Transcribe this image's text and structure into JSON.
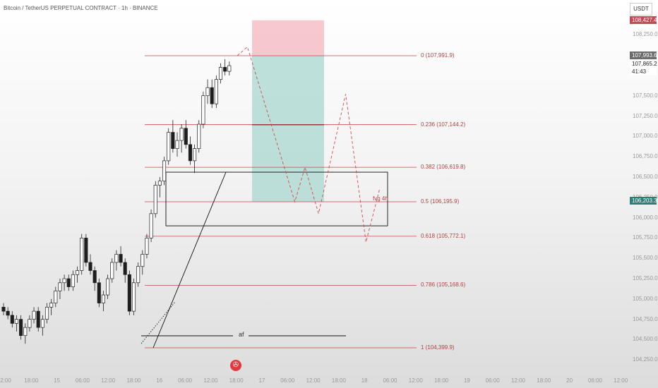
{
  "header": {
    "title": "Bitcoin / TetherUS PERPETUAL CONTRACT · 1h · BINANCE"
  },
  "currency": "USDT",
  "price_axis": {
    "ticks": [
      "108,250.0",
      "107,500.0",
      "107,250.0",
      "107,000.0",
      "106,750.0",
      "106,500.0",
      "106,250.0",
      "106,000.0",
      "105,750.0",
      "105,500.0",
      "105,250.0",
      "105,000.0",
      "104,750.0",
      "104,500.0",
      "104,250.0"
    ],
    "tick_values": [
      108250,
      107500,
      107250,
      107000,
      106750,
      106500,
      106250,
      106000,
      105750,
      105500,
      105250,
      105000,
      104750,
      104500,
      104250
    ],
    "labels": {
      "stop": {
        "text": "108,427.4",
        "value": 108427.4,
        "color": "#c44a55"
      },
      "last": {
        "text": "107,993.6",
        "value": 107993.6,
        "color": "#6b6b6b"
      },
      "current": {
        "text": "107,865.2",
        "value": 107865.2
      },
      "countdown": {
        "text": "41:43"
      },
      "fvg_price": {
        "text": "106,203.3",
        "value": 106203.3,
        "color": "#2f7d74"
      }
    }
  },
  "time_axis": {
    "ticks": [
      "2:00",
      "18:00",
      "15",
      "06:00",
      "12:00",
      "18:00",
      "16",
      "06:00",
      "12:00",
      "18:00",
      "17",
      "06:00",
      "12:00",
      "18:00",
      "18",
      "06:00",
      "12:00",
      "18:00",
      "19",
      "06:00",
      "12:00",
      "18:00",
      "20",
      "06:00",
      "12:00"
    ]
  },
  "chart_data": {
    "type": "candlestick",
    "title": "Bitcoin / TetherUS PERPETUAL CONTRACT · 1h · BINANCE",
    "fib_levels": [
      {
        "ratio": "0",
        "price": 107991.9,
        "label": "0 (107,991.9)"
      },
      {
        "ratio": "0.236",
        "price": 107144.2,
        "label": "0.236 (107,144.2)"
      },
      {
        "ratio": "0.382",
        "price": 106619.8,
        "label": "0.382 (106,619.8)"
      },
      {
        "ratio": "0.5",
        "price": 106195.9,
        "label": "0.5 (106,195.9)"
      },
      {
        "ratio": "0.618",
        "price": 105772.1,
        "label": "0.618 (105,772.1)"
      },
      {
        "ratio": "0.786",
        "price": 105168.6,
        "label": "0.786 (105,168.6)"
      },
      {
        "ratio": "1",
        "price": 104399.9,
        "label": "1 (104,399.9)"
      }
    ],
    "position": {
      "stop": 108427.4,
      "entry": 107991.9,
      "mid": 107144.2,
      "target": 106195.9
    },
    "fvg_zone": {
      "label": "fvg 4h",
      "top": 106560,
      "bottom": 105900
    },
    "annotation": "af",
    "candles": [
      [
        104900,
        104950,
        104800,
        104850
      ],
      [
        104850,
        104900,
        104750,
        104800
      ],
      [
        104800,
        104850,
        104650,
        104700
      ],
      [
        104700,
        104800,
        104600,
        104750
      ],
      [
        104750,
        104800,
        104500,
        104550
      ],
      [
        104550,
        104700,
        104450,
        104650
      ],
      [
        104650,
        104800,
        104600,
        104750
      ],
      [
        104750,
        104900,
        104700,
        104850
      ],
      [
        104850,
        104900,
        104600,
        104650
      ],
      [
        104650,
        104800,
        104550,
        104750
      ],
      [
        104750,
        104950,
        104700,
        104900
      ],
      [
        104900,
        105000,
        104800,
        104950
      ],
      [
        104950,
        105150,
        104900,
        105100
      ],
      [
        105100,
        105250,
        105000,
        105200
      ],
      [
        105200,
        105300,
        105100,
        105250
      ],
      [
        105250,
        105300,
        105100,
        105150
      ],
      [
        105150,
        105350,
        105100,
        105300
      ],
      [
        105300,
        105400,
        105200,
        105350
      ],
      [
        105350,
        105800,
        105300,
        105750
      ],
      [
        105750,
        105800,
        105400,
        105450
      ],
      [
        105450,
        105550,
        105300,
        105350
      ],
      [
        105350,
        105400,
        105100,
        105200
      ],
      [
        105200,
        105250,
        104900,
        104950
      ],
      [
        104950,
        105100,
        104850,
        105050
      ],
      [
        105050,
        105300,
        105000,
        105250
      ],
      [
        105250,
        105500,
        105200,
        105450
      ],
      [
        105450,
        105600,
        105350,
        105550
      ],
      [
        105550,
        105650,
        105400,
        105450
      ],
      [
        105450,
        105500,
        105200,
        105300
      ],
      [
        105300,
        105350,
        104800,
        104850
      ],
      [
        104850,
        105250,
        104800,
        105200
      ],
      [
        105200,
        105450,
        105150,
        105400
      ],
      [
        105400,
        105600,
        105300,
        105550
      ],
      [
        105550,
        105800,
        105500,
        105750
      ],
      [
        105750,
        106100,
        105700,
        106050
      ],
      [
        106050,
        106450,
        106000,
        106400
      ],
      [
        106400,
        106500,
        106250,
        106450
      ],
      [
        106450,
        106750,
        106400,
        106700
      ],
      [
        106700,
        107100,
        106650,
        107050
      ],
      [
        107050,
        107200,
        106800,
        106850
      ],
      [
        106850,
        107050,
        106750,
        106950
      ],
      [
        106950,
        107150,
        106800,
        107100
      ],
      [
        107100,
        107200,
        106850,
        106900
      ],
      [
        106900,
        107000,
        106650,
        106700
      ],
      [
        106700,
        106900,
        106550,
        106850
      ],
      [
        106850,
        107200,
        106800,
        107150
      ],
      [
        107150,
        107550,
        107100,
        107500
      ],
      [
        107500,
        107700,
        107400,
        107600
      ],
      [
        107600,
        107700,
        107350,
        107400
      ],
      [
        107400,
        107750,
        107350,
        107700
      ],
      [
        107700,
        107900,
        107650,
        107850
      ],
      [
        107850,
        107950,
        107750,
        107800
      ],
      [
        107800,
        107920,
        107750,
        107870
      ]
    ],
    "projection_path": [
      [
        107991.9,
        0
      ],
      [
        108100,
        3
      ],
      [
        106195.9,
        17
      ],
      [
        106620,
        20
      ],
      [
        106050,
        24
      ],
      [
        107520,
        32
      ],
      [
        105700,
        38
      ],
      [
        106350,
        42
      ]
    ]
  }
}
